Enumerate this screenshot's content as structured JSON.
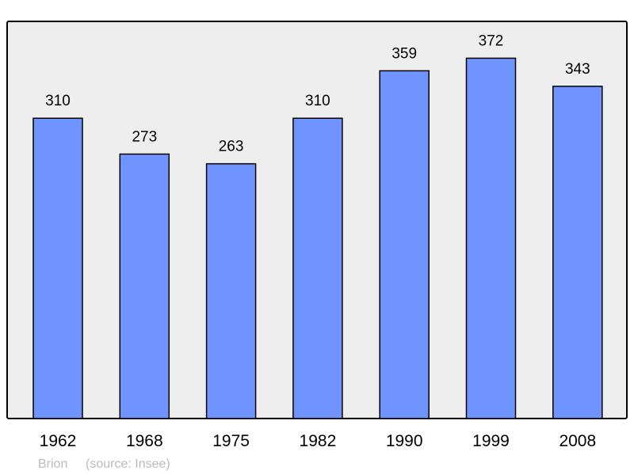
{
  "chart_data": {
    "type": "bar",
    "categories": [
      "1962",
      "1968",
      "1975",
      "1982",
      "1990",
      "1999",
      "2008"
    ],
    "values": [
      310,
      273,
      263,
      310,
      359,
      372,
      343
    ],
    "title": "",
    "xlabel": "",
    "ylabel": "",
    "ylim": [
      0,
      410
    ],
    "grid": false,
    "data_labels": true,
    "colors": {
      "bar": "#7094ff",
      "bar_stroke": "#000000",
      "plot_background": "#eeeeee",
      "footer_text": "#bbbbbb"
    }
  },
  "footer": {
    "place": "Brion",
    "source": "(source: Insee)"
  }
}
